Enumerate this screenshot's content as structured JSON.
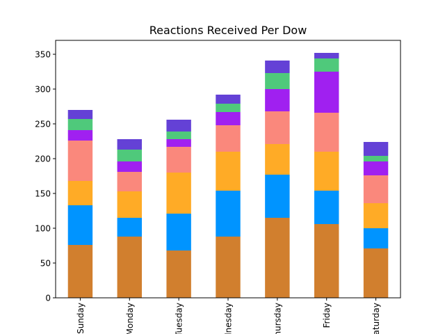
{
  "chart_data": {
    "type": "bar",
    "stacked": true,
    "title": "Reactions Received Per Dow",
    "xlabel": "",
    "ylabel": "",
    "ylim": [
      0,
      370
    ],
    "yticks": [
      0,
      50,
      100,
      150,
      200,
      250,
      300,
      350
    ],
    "grid": false,
    "legend": "none",
    "categories": [
      "Sunday",
      "Monday",
      "Tuesday",
      "Wednesday",
      "Thursday",
      "Friday",
      "Saturday"
    ],
    "series": [
      {
        "color": "#d17f2e",
        "values": [
          76,
          88,
          68,
          88,
          115,
          106,
          71
        ]
      },
      {
        "color": "#0094ff",
        "values": [
          57,
          27,
          53,
          66,
          62,
          48,
          29
        ]
      },
      {
        "color": "#ffab26",
        "values": [
          35,
          38,
          59,
          56,
          44,
          56,
          36
        ]
      },
      {
        "color": "#fa887c",
        "values": [
          58,
          28,
          37,
          38,
          47,
          56,
          40
        ]
      },
      {
        "color": "#a020f0",
        "values": [
          15,
          15,
          11,
          19,
          32,
          59,
          20
        ]
      },
      {
        "color": "#4fc97b",
        "values": [
          16,
          17,
          11,
          12,
          23,
          19,
          8
        ]
      },
      {
        "color": "#6441d6",
        "values": [
          13,
          15,
          17,
          13,
          18,
          8,
          20
        ]
      }
    ]
  }
}
